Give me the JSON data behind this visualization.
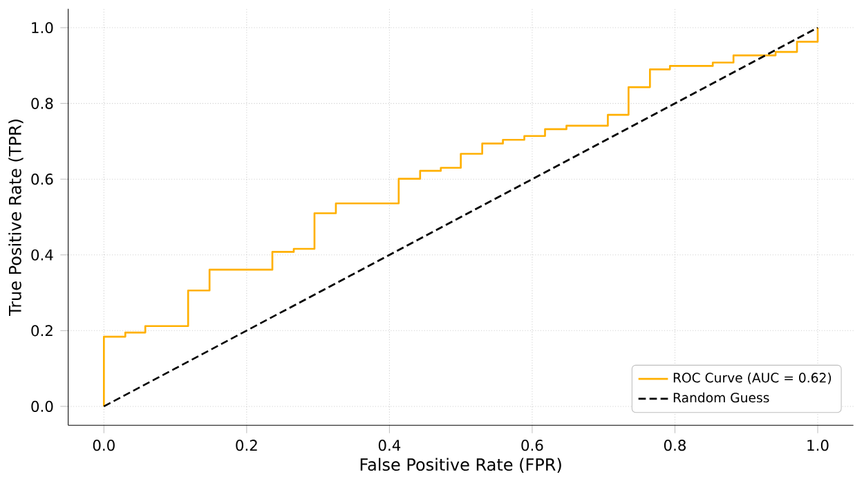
{
  "chart_data": {
    "type": "line",
    "xlabel": "False Positive Rate (FPR)",
    "ylabel": "True Positive Rate (TPR)",
    "xlim": [
      -0.05,
      1.05
    ],
    "ylim": [
      -0.05,
      1.05
    ],
    "xticks": [
      {
        "value": 0,
        "label": "0.0"
      },
      {
        "value": 0.2,
        "label": "0.2"
      },
      {
        "value": 0.4,
        "label": "0.4"
      },
      {
        "value": 0.6,
        "label": "0.6"
      },
      {
        "value": 0.8,
        "label": "0.8"
      },
      {
        "value": 1,
        "label": "1.0"
      }
    ],
    "yticks": [
      {
        "value": 0,
        "label": "0.0"
      },
      {
        "value": 0.2,
        "label": "0.2"
      },
      {
        "value": 0.4,
        "label": "0.4"
      },
      {
        "value": 0.6,
        "label": "0.6"
      },
      {
        "value": 0.8,
        "label": "0.8"
      },
      {
        "value": 1,
        "label": "1.0"
      }
    ],
    "grid": true,
    "legend": "bottom right",
    "series": [
      {
        "name": "ROC Curve (AUC = 0.62)",
        "type": "step",
        "color": "#ffb000",
        "line_style": "solid",
        "x": [
          0,
          0,
          0.03,
          0.058,
          0.118,
          0.148,
          0.236,
          0.266,
          0.295,
          0.325,
          0.413,
          0.443,
          0.472,
          0.5,
          0.53,
          0.559,
          0.589,
          0.618,
          0.648,
          0.706,
          0.735,
          0.765,
          0.793,
          0.853,
          0.882,
          0.941,
          0.971,
          1.0
        ],
        "values": [
          0,
          0.184,
          0.195,
          0.212,
          0.306,
          0.361,
          0.408,
          0.416,
          0.51,
          0.536,
          0.601,
          0.622,
          0.63,
          0.667,
          0.694,
          0.704,
          0.714,
          0.732,
          0.741,
          0.77,
          0.843,
          0.89,
          0.899,
          0.908,
          0.927,
          0.936,
          0.963,
          1.0
        ]
      },
      {
        "name": "Random Guess",
        "type": "line",
        "color": "#000000",
        "line_style": "dashed",
        "x": [
          0,
          1
        ],
        "values": [
          0,
          1
        ]
      }
    ]
  }
}
